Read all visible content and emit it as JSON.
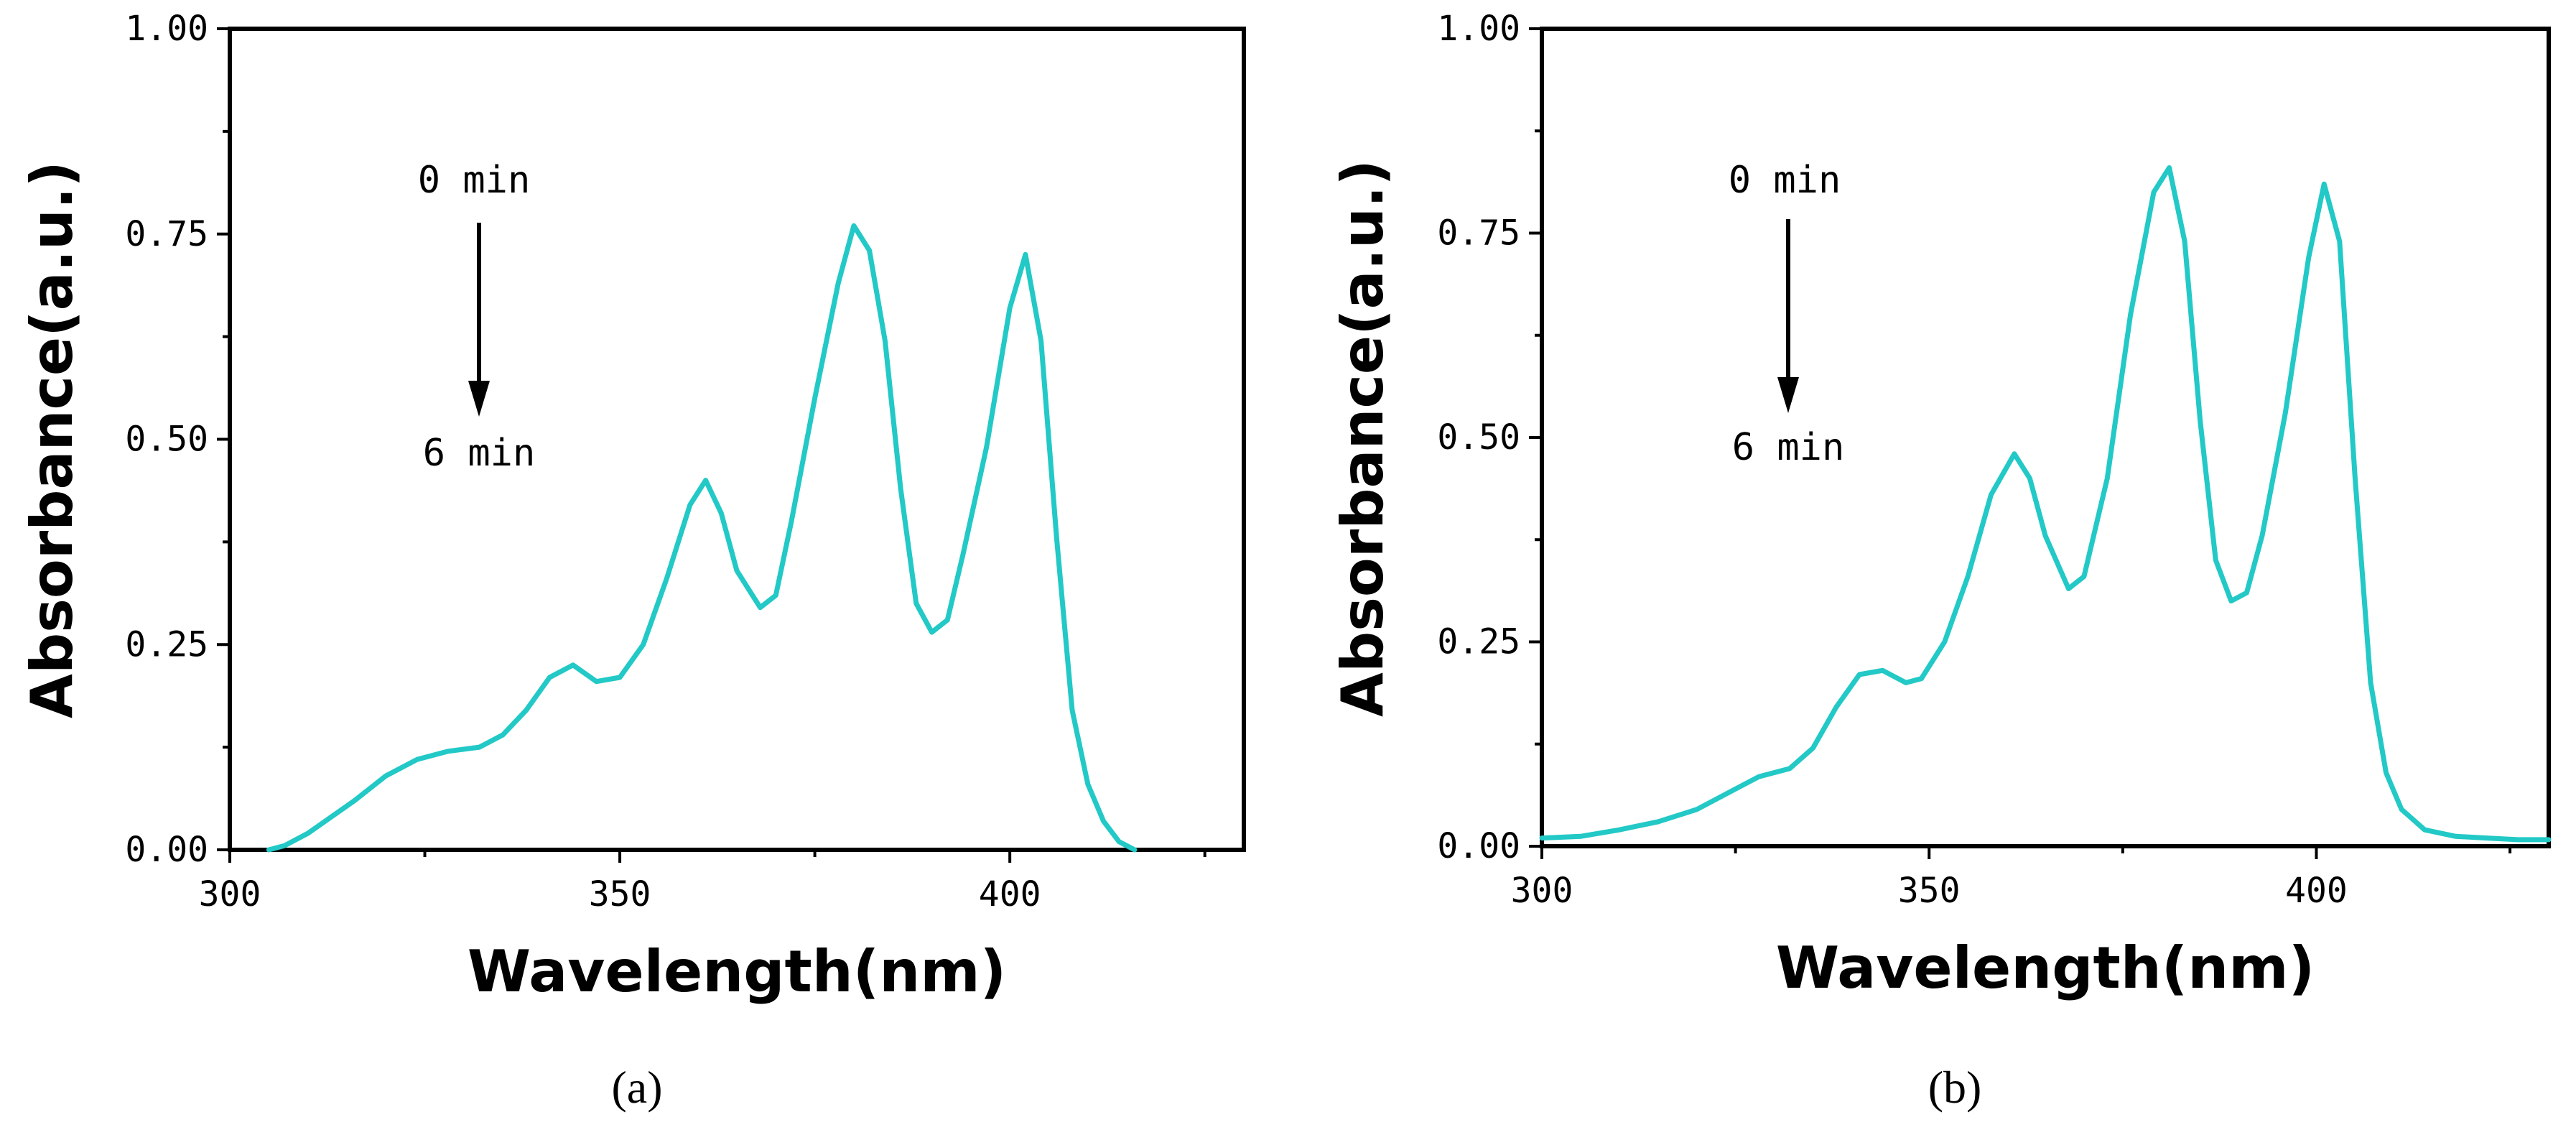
{
  "colors": {
    "series": "#22c9c6",
    "axis": "#000000"
  },
  "chart_data": [
    {
      "panel": "a",
      "caption": "(a)",
      "type": "line",
      "xlabel": "Wavelength(nm)",
      "ylabel": "Absorbance(a.u.)",
      "xlim": [
        300,
        430
      ],
      "ylim": [
        0,
        1.0
      ],
      "xticks": [
        300,
        350,
        400
      ],
      "xtick_labels": [
        "300",
        "350",
        "400"
      ],
      "yticks": [
        0,
        0.25,
        0.5,
        0.75,
        1.0
      ],
      "ytick_labels": [
        "0.00",
        "0.25",
        "0.50",
        "0.75",
        "1.00"
      ],
      "annotation": {
        "start_label": "0 min",
        "end_label": "6 min"
      },
      "series": [
        {
          "name": "spectrum",
          "x": [
            305,
            307,
            310,
            313,
            316,
            320,
            324,
            328,
            332,
            335,
            338,
            341,
            344,
            347,
            350,
            353,
            356,
            359,
            361,
            363,
            365,
            368,
            370,
            372,
            375,
            378,
            380,
            382,
            384,
            386,
            388,
            390,
            392,
            394,
            397,
            400,
            402,
            404,
            406,
            408,
            410,
            412,
            414,
            416
          ],
          "y": [
            0.0,
            0.005,
            0.02,
            0.04,
            0.06,
            0.09,
            0.11,
            0.12,
            0.125,
            0.14,
            0.17,
            0.21,
            0.225,
            0.205,
            0.21,
            0.25,
            0.33,
            0.42,
            0.45,
            0.41,
            0.34,
            0.295,
            0.31,
            0.4,
            0.55,
            0.69,
            0.76,
            0.73,
            0.62,
            0.44,
            0.3,
            0.265,
            0.28,
            0.36,
            0.49,
            0.66,
            0.725,
            0.62,
            0.38,
            0.17,
            0.08,
            0.035,
            0.01,
            0.0
          ]
        }
      ]
    },
    {
      "panel": "b",
      "caption": "(b)",
      "type": "line",
      "xlabel": "Wavelength(nm)",
      "ylabel": "Absorbance(a.u.)",
      "xlim": [
        300,
        430
      ],
      "ylim": [
        0,
        1.0
      ],
      "xticks": [
        300,
        350,
        400
      ],
      "xtick_labels": [
        "300",
        "350",
        "400"
      ],
      "yticks": [
        0,
        0.25,
        0.5,
        0.75,
        1.0
      ],
      "ytick_labels": [
        "0.00",
        "0.25",
        "0.50",
        "0.75",
        "1.00"
      ],
      "annotation": {
        "start_label": "0 min",
        "end_label": "6 min"
      },
      "series": [
        {
          "name": "spectrum",
          "x": [
            300,
            305,
            310,
            315,
            320,
            325,
            328,
            332,
            335,
            338,
            341,
            344,
            347,
            349,
            352,
            355,
            358,
            361,
            363,
            365,
            368,
            370,
            373,
            376,
            379,
            381,
            383,
            385,
            387,
            389,
            391,
            393,
            396,
            399,
            401,
            403,
            405,
            407,
            409,
            411,
            414,
            418,
            422,
            426,
            430
          ],
          "y": [
            0.01,
            0.012,
            0.02,
            0.03,
            0.045,
            0.07,
            0.085,
            0.095,
            0.12,
            0.17,
            0.21,
            0.215,
            0.2,
            0.205,
            0.25,
            0.33,
            0.43,
            0.48,
            0.45,
            0.38,
            0.315,
            0.33,
            0.45,
            0.65,
            0.8,
            0.83,
            0.74,
            0.52,
            0.35,
            0.3,
            0.31,
            0.38,
            0.53,
            0.72,
            0.81,
            0.74,
            0.45,
            0.2,
            0.09,
            0.045,
            0.02,
            0.012,
            0.01,
            0.008,
            0.008
          ]
        }
      ]
    }
  ]
}
